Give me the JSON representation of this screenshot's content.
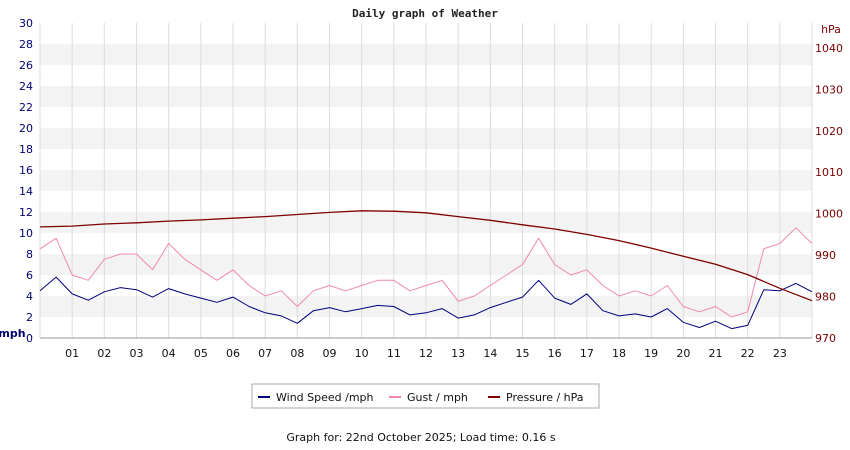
{
  "chart_data": {
    "type": "line",
    "title": "Daily graph of Weather",
    "left_axis": {
      "unit": "mph",
      "range": [
        0,
        30
      ],
      "ticks": [
        0,
        2,
        4,
        6,
        8,
        10,
        12,
        14,
        16,
        18,
        20,
        22,
        24,
        26,
        28,
        30
      ]
    },
    "right_axis": {
      "unit": "hPa",
      "range": [
        970,
        1046
      ],
      "ticks": [
        970,
        980,
        990,
        1000,
        1010,
        1020,
        1030,
        1040
      ]
    },
    "x_axis": {
      "range": [
        0,
        24
      ],
      "tick_labels": [
        "01",
        "02",
        "03",
        "04",
        "05",
        "06",
        "07",
        "08",
        "09",
        "10",
        "11",
        "12",
        "13",
        "14",
        "15",
        "16",
        "17",
        "18",
        "19",
        "20",
        "21",
        "22",
        "23"
      ]
    },
    "grid": "alternating horizontal bands, vertical lines every hour",
    "legend_position": "bottom-center",
    "series": [
      {
        "name": "Wind Speed /mph",
        "axis": "left",
        "color": "#00007f",
        "x": [
          0,
          0.5,
          1,
          1.5,
          2,
          2.5,
          3,
          3.5,
          4,
          4.5,
          5,
          5.5,
          6,
          6.5,
          7,
          7.5,
          8,
          8.5,
          9,
          9.5,
          10,
          10.5,
          11,
          11.5,
          12,
          12.5,
          13,
          13.5,
          14,
          14.5,
          15,
          15.5,
          16,
          16.5,
          17,
          17.5,
          18,
          18.5,
          19,
          19.5,
          20,
          20.5,
          21,
          21.5,
          22,
          22.5,
          23,
          23.5,
          24
        ],
        "values": [
          4.5,
          5.8,
          4.2,
          3.6,
          4.4,
          4.8,
          4.6,
          3.9,
          4.7,
          4.2,
          3.8,
          3.4,
          3.9,
          3.0,
          2.4,
          2.1,
          1.4,
          2.6,
          2.9,
          2.5,
          2.8,
          3.1,
          3.0,
          2.2,
          2.4,
          2.8,
          1.9,
          2.2,
          2.9,
          3.4,
          3.9,
          5.5,
          3.8,
          3.2,
          4.2,
          2.6,
          2.1,
          2.3,
          2.0,
          2.8,
          1.5,
          1.0,
          1.6,
          0.9,
          1.2,
          4.6,
          4.5,
          5.2,
          4.4
        ]
      },
      {
        "name": "Gust / mph",
        "axis": "left",
        "color": "#f088b0",
        "x": [
          0,
          0.5,
          1,
          1.5,
          2,
          2.5,
          3,
          3.5,
          4,
          4.5,
          5,
          5.5,
          6,
          6.5,
          7,
          7.5,
          8,
          8.5,
          9,
          9.5,
          10,
          10.5,
          11,
          11.5,
          12,
          12.5,
          13,
          13.5,
          14,
          14.5,
          15,
          15.5,
          16,
          16.5,
          17,
          17.5,
          18,
          18.5,
          19,
          19.5,
          20,
          20.5,
          21,
          21.5,
          22,
          22.5,
          23,
          23.5,
          24
        ],
        "values": [
          8.5,
          9.5,
          6.0,
          5.5,
          7.5,
          8.0,
          8.0,
          6.5,
          9.0,
          7.5,
          6.5,
          5.5,
          6.5,
          5.0,
          4.0,
          4.5,
          3.0,
          4.5,
          5.0,
          4.5,
          5.0,
          5.5,
          5.5,
          4.5,
          5.0,
          5.5,
          3.5,
          4.0,
          5.0,
          6.0,
          7.0,
          9.5,
          7.0,
          6.0,
          6.5,
          5.0,
          4.0,
          4.5,
          4.0,
          5.0,
          3.0,
          2.5,
          3.0,
          2.0,
          2.5,
          8.5,
          9.0,
          10.5,
          9.0
        ]
      },
      {
        "name": "Pressure / hPa",
        "axis": "right",
        "color": "#800000",
        "x": [
          0,
          1,
          2,
          3,
          4,
          5,
          6,
          7,
          8,
          9,
          10,
          11,
          12,
          13,
          14,
          15,
          16,
          17,
          18,
          19,
          20,
          21,
          22,
          23,
          24
        ],
        "values": [
          996.8,
          997.0,
          997.5,
          997.8,
          998.2,
          998.5,
          998.9,
          999.3,
          999.8,
          1000.3,
          1000.7,
          1000.6,
          1000.2,
          999.3,
          998.4,
          997.3,
          996.3,
          995.0,
          993.5,
          991.7,
          989.7,
          987.8,
          985.3,
          982.0,
          979.0
        ]
      }
    ]
  },
  "footer": {
    "text": "Graph for: 22nd October 2025; Load time: 0.16 s"
  }
}
